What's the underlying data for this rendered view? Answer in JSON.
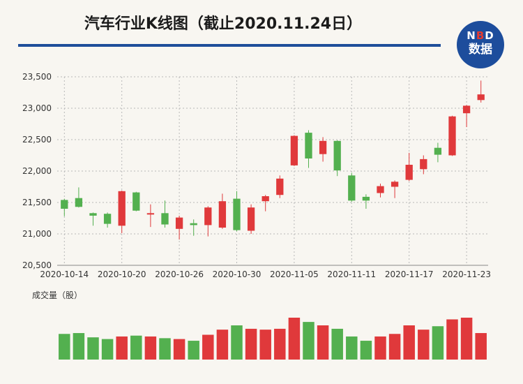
{
  "title": "汽车行业K线图（截止2020.11.24日）",
  "logo": {
    "line1_a": "N",
    "line1_o": "B",
    "line1_b": "D",
    "line2": "数据"
  },
  "volume_label": "成交量（股）",
  "colors": {
    "up": "#e0393b",
    "down": "#53b04f",
    "grid": "#b8b8b8",
    "accent": "#1f4e9a"
  },
  "chart_data": {
    "type": "candlestick",
    "title": "汽车行业K线图（截止2020.11.24日）",
    "ylim": [
      20500,
      23500
    ],
    "yticks": [
      20500,
      21000,
      21500,
      22000,
      22500,
      23000,
      23500
    ],
    "ytick_labels": [
      "20,500",
      "21,000",
      "21,500",
      "22,000",
      "22,500",
      "23,000",
      "23,500"
    ],
    "xtick_labels": [
      {
        "index": 0,
        "label": "2020-10-14"
      },
      {
        "index": 4,
        "label": "2020-10-20"
      },
      {
        "index": 8,
        "label": "2020-10-26"
      },
      {
        "index": 12,
        "label": "2020-10-30"
      },
      {
        "index": 16,
        "label": "2020-11-05"
      },
      {
        "index": 20,
        "label": "2020-11-11"
      },
      {
        "index": 24,
        "label": "2020-11-17"
      },
      {
        "index": 28,
        "label": "2020-11-23"
      }
    ],
    "candles": [
      {
        "o": 21540,
        "c": 21400,
        "h": 21560,
        "l": 21280
      },
      {
        "o": 21570,
        "c": 21430,
        "h": 21740,
        "l": 21420
      },
      {
        "o": 21330,
        "c": 21290,
        "h": 21340,
        "l": 21130
      },
      {
        "o": 21320,
        "c": 21160,
        "h": 21340,
        "l": 21100
      },
      {
        "o": 21130,
        "c": 21680,
        "h": 21690,
        "l": 21010
      },
      {
        "o": 21660,
        "c": 21370,
        "h": 21670,
        "l": 21360
      },
      {
        "o": 21310,
        "c": 21330,
        "h": 21470,
        "l": 21110
      },
      {
        "o": 21330,
        "c": 21150,
        "h": 21530,
        "l": 21100
      },
      {
        "o": 21080,
        "c": 21260,
        "h": 21290,
        "l": 20910
      },
      {
        "o": 21170,
        "c": 21140,
        "h": 21230,
        "l": 20970
      },
      {
        "o": 21140,
        "c": 21420,
        "h": 21440,
        "l": 20960
      },
      {
        "o": 21100,
        "c": 21520,
        "h": 21640,
        "l": 21080
      },
      {
        "o": 21560,
        "c": 21060,
        "h": 21680,
        "l": 21040
      },
      {
        "o": 21050,
        "c": 21420,
        "h": 21470,
        "l": 21000
      },
      {
        "o": 21520,
        "c": 21600,
        "h": 21620,
        "l": 21360
      },
      {
        "o": 21620,
        "c": 21880,
        "h": 21930,
        "l": 21570
      },
      {
        "o": 22090,
        "c": 22560,
        "h": 22570,
        "l": 22080
      },
      {
        "o": 22610,
        "c": 22200,
        "h": 22650,
        "l": 22050
      },
      {
        "o": 22270,
        "c": 22480,
        "h": 22540,
        "l": 22150
      },
      {
        "o": 22480,
        "c": 22010,
        "h": 22490,
        "l": 21920
      },
      {
        "o": 21930,
        "c": 21530,
        "h": 21970,
        "l": 21510
      },
      {
        "o": 21590,
        "c": 21530,
        "h": 21630,
        "l": 21400
      },
      {
        "o": 21650,
        "c": 21760,
        "h": 21800,
        "l": 21580
      },
      {
        "o": 21750,
        "c": 21830,
        "h": 21850,
        "l": 21570
      },
      {
        "o": 21860,
        "c": 22100,
        "h": 22290,
        "l": 21840
      },
      {
        "o": 22030,
        "c": 22190,
        "h": 22250,
        "l": 21950
      },
      {
        "o": 22370,
        "c": 22260,
        "h": 22450,
        "l": 22140
      },
      {
        "o": 22250,
        "c": 22870,
        "h": 22880,
        "l": 22240
      },
      {
        "o": 22920,
        "c": 23040,
        "h": 23050,
        "l": 22700
      },
      {
        "o": 23130,
        "c": 23220,
        "h": 23440,
        "l": 23090
      }
    ],
    "volume": [
      30,
      31,
      26,
      24,
      27,
      28,
      27,
      25,
      24,
      22,
      29,
      35,
      40,
      36,
      35,
      36,
      49,
      44,
      40,
      36,
      27,
      22,
      27,
      30,
      40,
      35,
      39,
      47,
      49,
      31
    ]
  }
}
